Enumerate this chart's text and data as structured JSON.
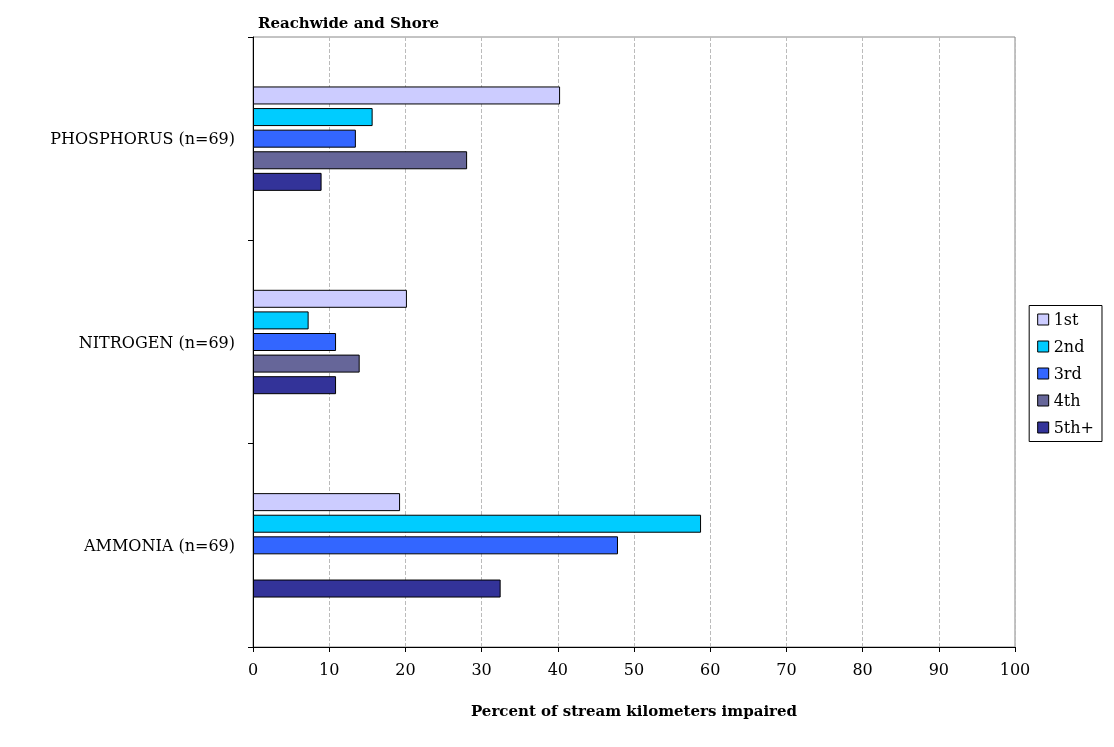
{
  "chart_data": {
    "type": "bar",
    "orientation": "horizontal",
    "title": "Reachwide and Shore",
    "xlabel": "Percent of stream kilometers impaired",
    "categories": [
      "PHOSPHORUS (n=69)",
      "NITROGEN (n=69)",
      "AMMONIA (n=69)"
    ],
    "series": [
      {
        "name": "1st",
        "color": "#ccccff",
        "values": [
          40.3,
          20.2,
          19.3
        ]
      },
      {
        "name": "2nd",
        "color": "#00ccff",
        "values": [
          15.7,
          7.3,
          58.8
        ]
      },
      {
        "name": "3rd",
        "color": "#3366ff",
        "values": [
          13.5,
          10.9,
          47.9
        ]
      },
      {
        "name": "4th",
        "color": "#666699",
        "values": [
          28.1,
          14.0,
          null
        ]
      },
      {
        "name": "5th+",
        "color": "#333399",
        "values": [
          9.0,
          10.9,
          32.5
        ]
      }
    ],
    "xlim": [
      0,
      100
    ],
    "xticks": [
      0,
      10,
      20,
      30,
      40,
      50,
      60,
      70,
      80,
      90,
      100
    ],
    "grid": "x",
    "legend": "right"
  }
}
